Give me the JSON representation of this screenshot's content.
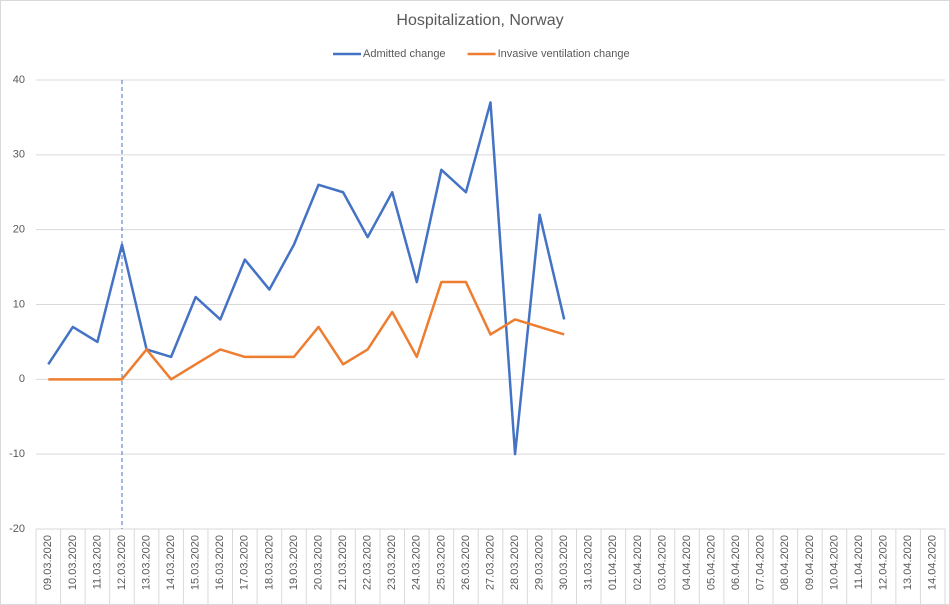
{
  "chart_data": {
    "type": "line",
    "title": "Hospitalization, Norway",
    "categories": [
      "09.03.2020",
      "10.03.2020",
      "11.03.2020",
      "12.03.2020",
      "13.03.2020",
      "14.03.2020",
      "15.03.2020",
      "16.03.2020",
      "17.03.2020",
      "18.03.2020",
      "19.03.2020",
      "20.03.2020",
      "21.03.2020",
      "22.03.2020",
      "23.03.2020",
      "24.03.2020",
      "25.03.2020",
      "26.03.2020",
      "27.03.2020",
      "28.03.2020",
      "29.03.2020",
      "30.03.2020",
      "31.03.2020",
      "01.04.2020",
      "02.04.2020",
      "03.04.2020",
      "04.04.2020",
      "05.04.2020",
      "06.04.2020",
      "07.04.2020",
      "08.04.2020",
      "09.04.2020",
      "10.04.2020",
      "11.04.2020",
      "12.04.2020",
      "13.04.2020",
      "14.04.2020"
    ],
    "series": [
      {
        "name": "Admitted change",
        "color": "#4472c4",
        "values": [
          2,
          7,
          5,
          18,
          4,
          3,
          11,
          8,
          16,
          12,
          18,
          26,
          25,
          19,
          25,
          13,
          28,
          25,
          37,
          -10,
          22,
          8,
          null,
          null,
          null,
          null,
          null,
          null,
          null,
          null,
          null,
          null,
          null,
          null,
          null,
          null,
          null
        ]
      },
      {
        "name": "Invasive ventilation change",
        "color": "#ed7d31",
        "values": [
          0,
          0,
          0,
          0,
          4,
          0,
          2,
          4,
          3,
          3,
          3,
          7,
          2,
          4,
          9,
          3,
          13,
          13,
          6,
          8,
          7,
          6,
          null,
          null,
          null,
          null,
          null,
          null,
          null,
          null,
          null,
          null,
          null,
          null,
          null,
          null,
          null
        ]
      }
    ],
    "ylim": [
      -20,
      40
    ],
    "yticks": [
      -20,
      -10,
      0,
      10,
      20,
      30,
      40
    ],
    "grid": true,
    "legend": "top",
    "vline": "12.03.2020"
  }
}
